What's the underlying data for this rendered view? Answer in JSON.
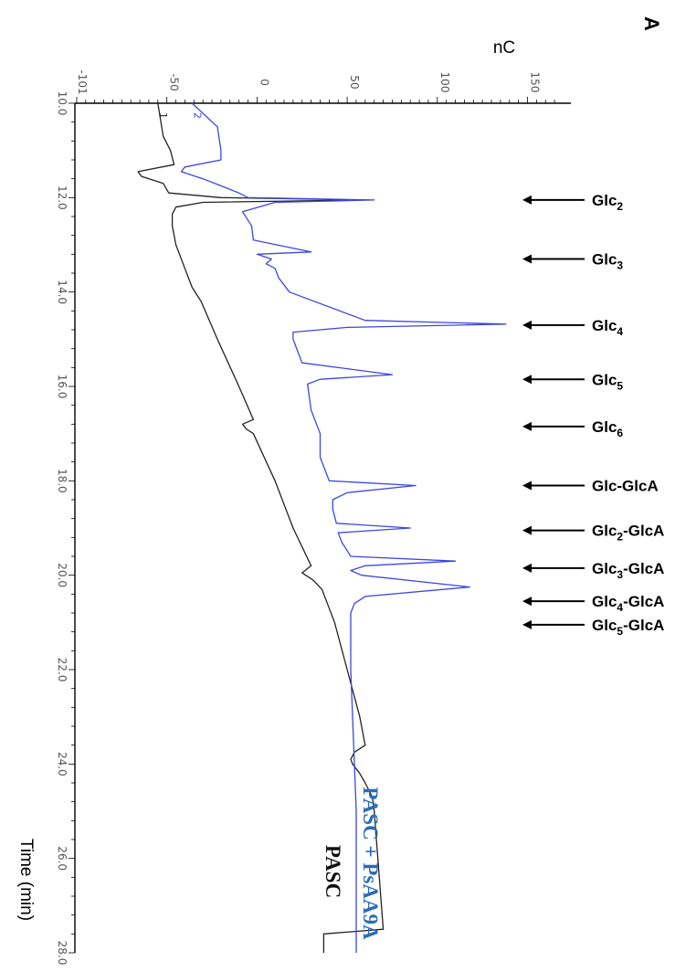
{
  "panel_letter": "A",
  "y_axis_label": "nC",
  "x_axis_label": "Time (min)",
  "colors": {
    "PASC": "#222222",
    "PASC + PsAA9A": "#3c46e0",
    "blue_text": "#2a6db5"
  },
  "chart_data": {
    "type": "line",
    "title": "",
    "xlabel": "Time (min)",
    "ylabel": "nC",
    "xlim": [
      10.0,
      28.0
    ],
    "ylim": [
      -101,
      170
    ],
    "x_ticks": [
      "10.0",
      "12.0",
      "14.0",
      "16.0",
      "18.0",
      "20.0",
      "22.0",
      "24.0",
      "26.0",
      "28.0"
    ],
    "y_ticks": [
      "-101",
      "-50",
      "0",
      "50",
      "100",
      "150"
    ],
    "series": [
      {
        "name": "PASC",
        "curve_number": "1",
        "x": [
          10.0,
          10.7,
          11.0,
          11.3,
          11.45,
          11.55,
          11.7,
          11.9,
          12.0,
          12.05,
          12.1,
          12.2,
          12.35,
          12.6,
          13.0,
          13.5,
          13.9,
          14.2,
          15.0,
          16.0,
          16.7,
          16.8,
          16.9,
          17.0,
          18.0,
          19.0,
          19.8,
          19.95,
          20.1,
          20.3,
          21.0,
          22.0,
          23.0,
          23.6,
          23.75,
          23.9,
          24.0,
          24.2,
          24.4,
          24.7,
          25.0,
          26.0,
          27.0,
          27.5,
          27.6,
          28.0
        ],
        "y": [
          -55,
          -52,
          -48,
          -46,
          -66,
          -64,
          -52,
          -49,
          -20,
          60,
          -30,
          -45,
          -47,
          -47,
          -45,
          -40,
          -36,
          -31,
          -22,
          -10,
          -2,
          -8,
          -6,
          -2,
          10,
          20,
          30,
          25,
          31,
          36,
          43,
          50,
          57,
          60,
          54,
          52,
          53,
          57,
          60,
          64,
          65,
          67,
          69,
          70,
          37,
          37
        ]
      },
      {
        "name": "PASC + PsAA9A",
        "curve_number": "2",
        "x": [
          10.0,
          10.5,
          11.0,
          11.2,
          11.35,
          11.45,
          11.6,
          11.75,
          11.9,
          12.0,
          12.05,
          12.1,
          12.3,
          12.6,
          12.9,
          13.15,
          13.2,
          13.3,
          13.4,
          13.5,
          13.7,
          14.0,
          14.6,
          14.68,
          14.75,
          14.85,
          15.0,
          15.5,
          15.75,
          15.85,
          15.95,
          16.5,
          17.0,
          17.5,
          18.0,
          18.1,
          18.25,
          18.4,
          18.6,
          18.9,
          19.0,
          19.1,
          19.3,
          19.6,
          19.7,
          19.8,
          19.9,
          20.0,
          20.25,
          20.45,
          20.6,
          20.8,
          21.0,
          22.0,
          23.0,
          24.0,
          25.0,
          26.0,
          27.0,
          28.0
        ],
        "y": [
          -36,
          -22,
          -20,
          -20,
          -40,
          -42,
          -30,
          -20,
          -10,
          -5,
          65,
          10,
          -8,
          -3,
          -2,
          30,
          0,
          8,
          5,
          10,
          12,
          18,
          60,
          138,
          50,
          20,
          20,
          25,
          75,
          35,
          28,
          30,
          35,
          35,
          40,
          88,
          50,
          42,
          42,
          44,
          85,
          45,
          47,
          52,
          110,
          60,
          52,
          58,
          118,
          60,
          54,
          52,
          52,
          52,
          53,
          54,
          55,
          55,
          55,
          55
        ]
      }
    ],
    "annotations": [
      {
        "label": [
          "Glc",
          "2",
          ""
        ],
        "x": 12.05
      },
      {
        "label": [
          "Glc",
          "3",
          ""
        ],
        "x": 13.3
      },
      {
        "label": [
          "Glc",
          "4",
          ""
        ],
        "x": 14.7
      },
      {
        "label": [
          "Glc",
          "5",
          ""
        ],
        "x": 15.85
      },
      {
        "label": [
          "Glc",
          "6",
          ""
        ],
        "x": 16.85
      },
      {
        "label": [
          "Glc-GlcA",
          "",
          ""
        ],
        "x": 18.1
      },
      {
        "label": [
          "Glc",
          "2",
          "-GlcA"
        ],
        "x": 19.05
      },
      {
        "label": [
          "Glc",
          "3",
          "-GlcA"
        ],
        "x": 19.85
      },
      {
        "label": [
          "Glc",
          "4",
          "-GlcA"
        ],
        "x": 20.55
      },
      {
        "label": [
          "Glc",
          "5",
          "-GlcA"
        ],
        "x": 21.05
      }
    ],
    "grid": false,
    "legend": "none"
  }
}
